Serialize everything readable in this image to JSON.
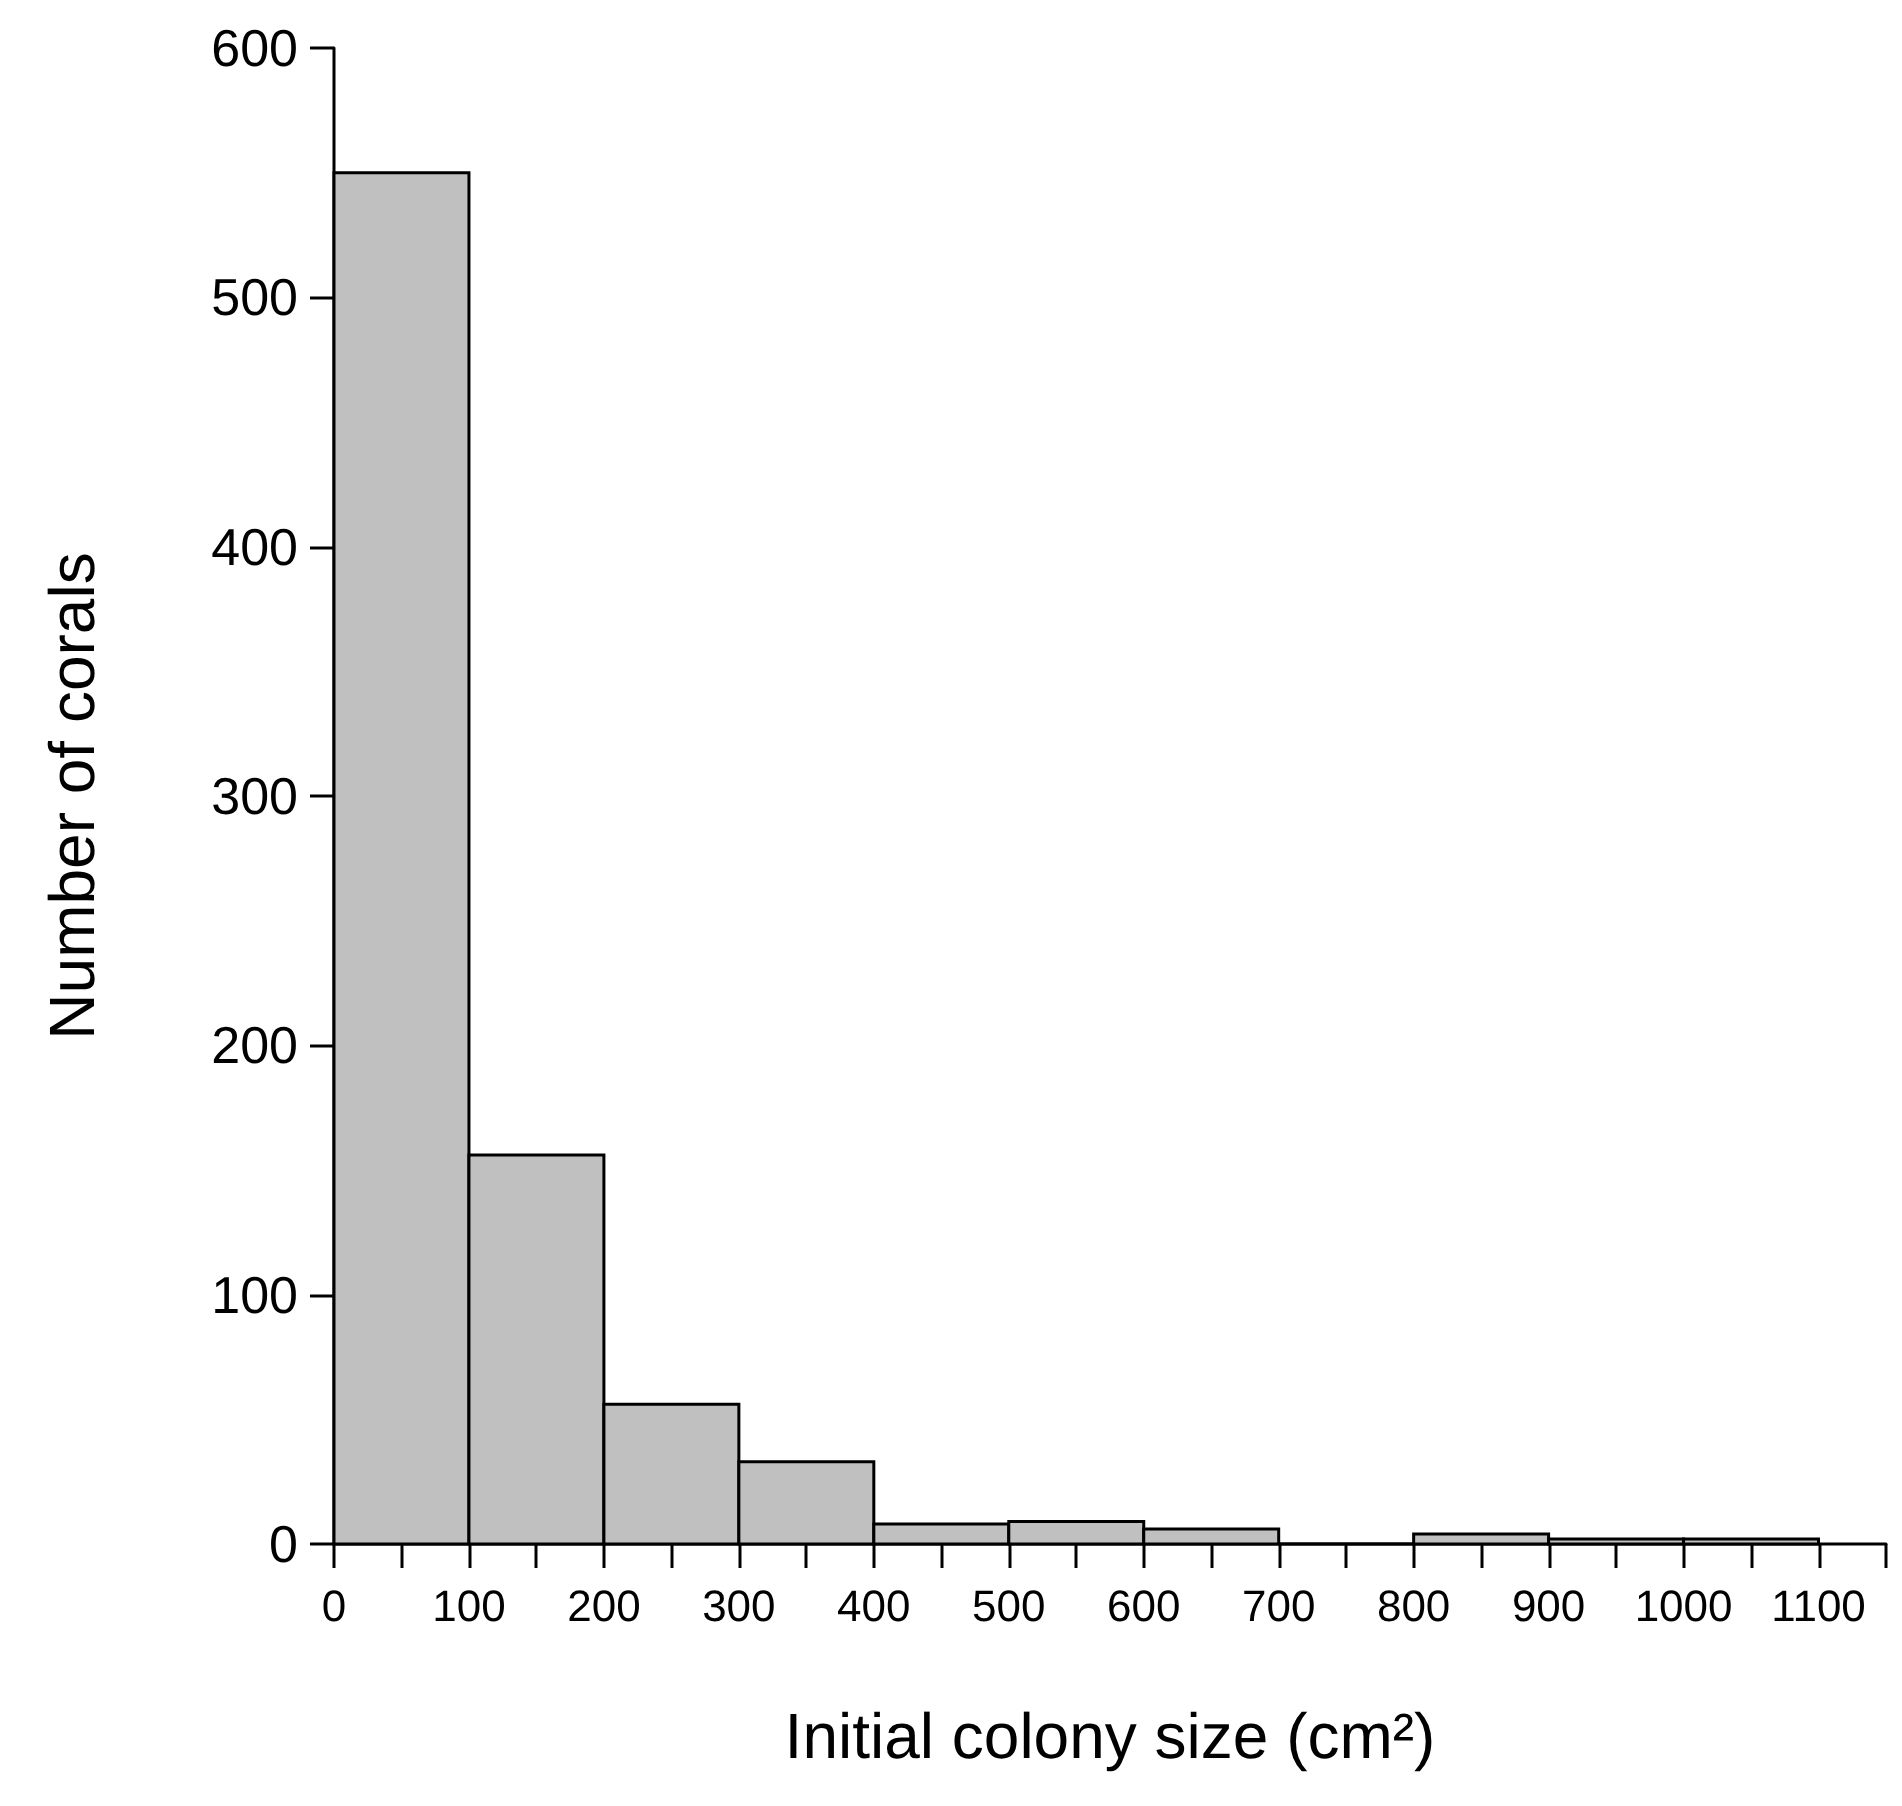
{
  "chart_data": {
    "type": "histogram",
    "xlabel": "Initial colony size (cm²)",
    "ylabel": "Number of corals",
    "bins": [
      0,
      100,
      200,
      300,
      400,
      500,
      600,
      700,
      800,
      900,
      1000,
      1100
    ],
    "values": [
      550,
      156,
      56,
      33,
      8,
      9,
      6,
      0,
      4,
      2,
      2
    ],
    "color": "#c0c0c0",
    "xlim": [
      0,
      1150
    ],
    "xticks": [
      0,
      {
        "value": 50,
        "label": null
      },
      100,
      {
        "value": 150,
        "label": null
      },
      200,
      {
        "value": 250,
        "label": null
      },
      300,
      {
        "value": 350,
        "label": null
      },
      400,
      {
        "value": 450,
        "label": null
      },
      500,
      {
        "value": 550,
        "label": null
      },
      600,
      {
        "value": 650,
        "label": null
      },
      700,
      {
        "value": 750,
        "label": null
      },
      800,
      {
        "value": 850,
        "label": null
      },
      900,
      {
        "value": 950,
        "label": null
      },
      1000,
      {
        "value": 1050,
        "label": null
      },
      1100,
      {
        "value": 1150,
        "label": null
      }
    ],
    "ylim": [
      0,
      600
    ],
    "yticks": [
      0,
      100,
      200,
      300,
      400,
      500,
      600
    ],
    "grid": false
  }
}
